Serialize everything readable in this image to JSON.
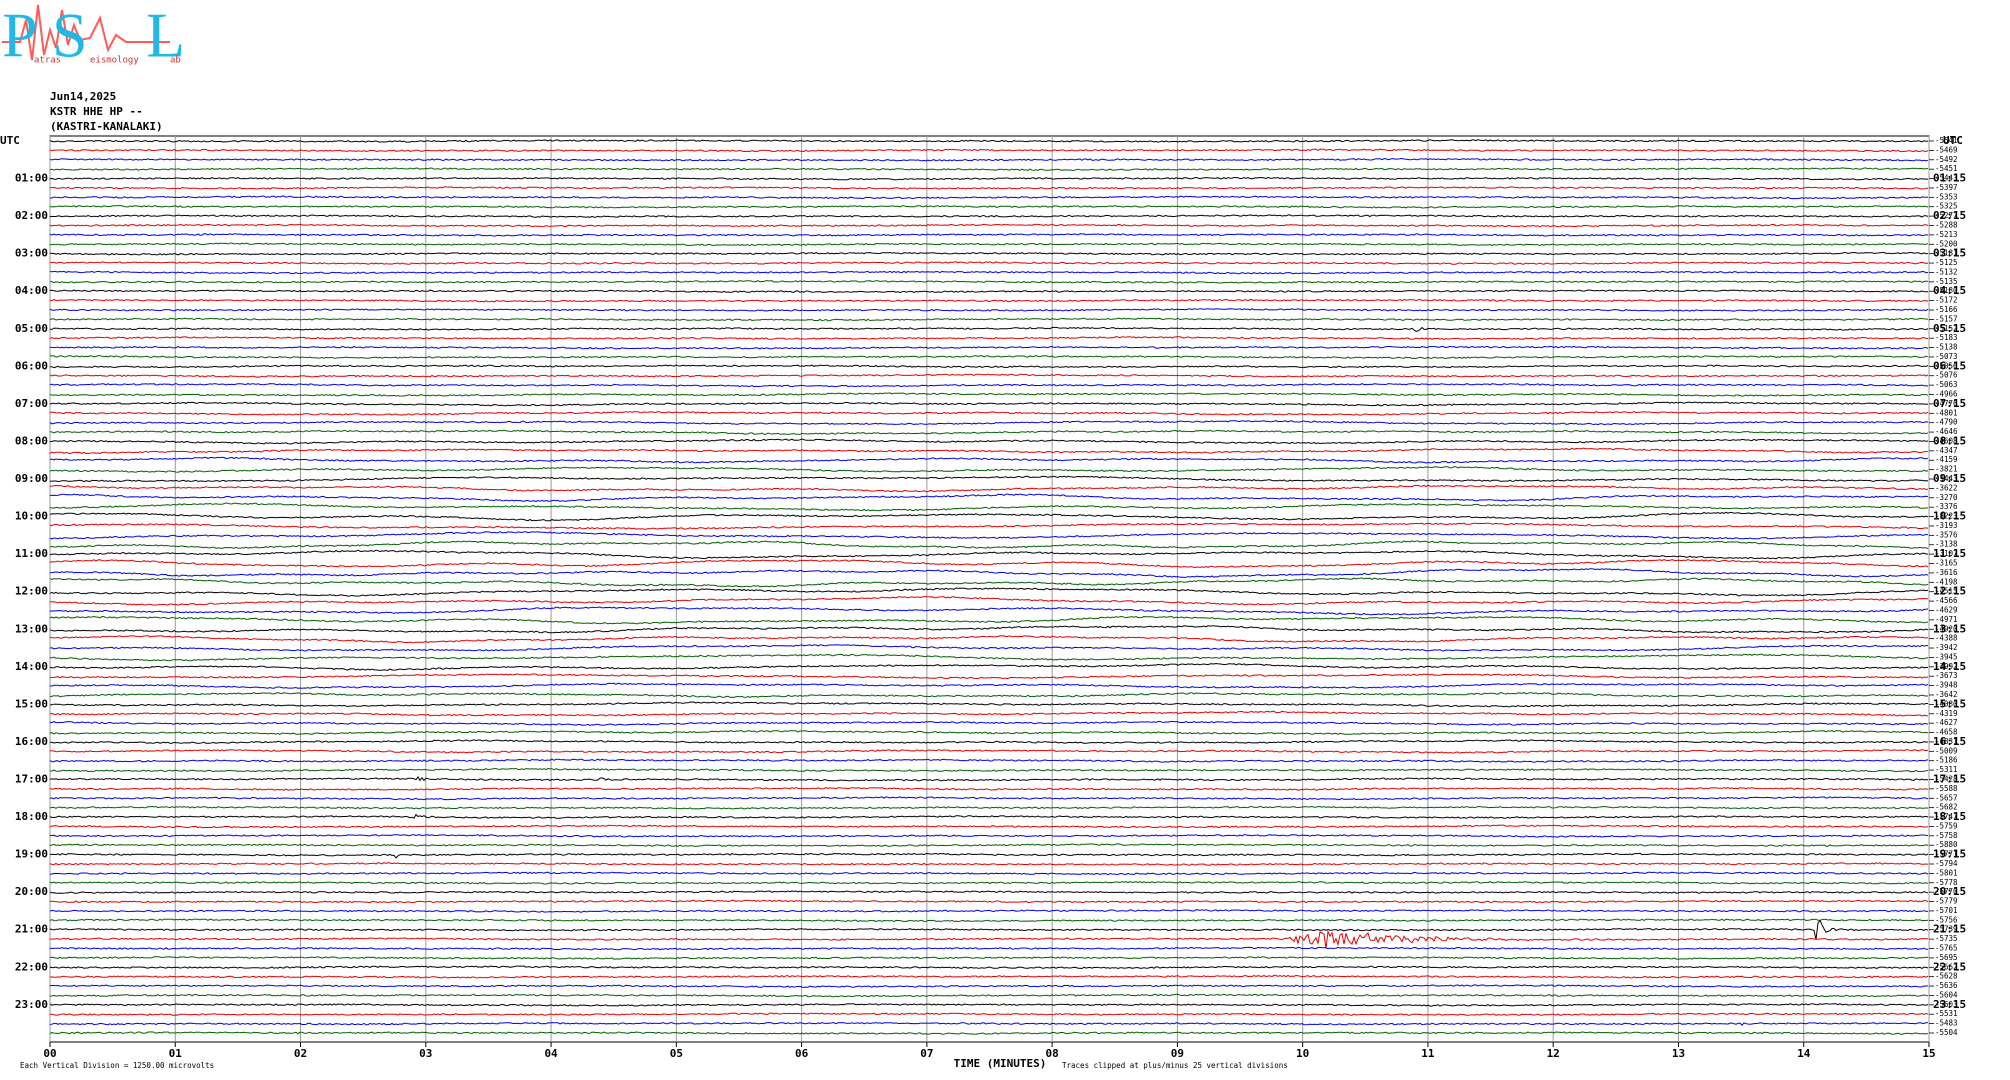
{
  "logo": {
    "letters": [
      "P",
      "S",
      "L"
    ],
    "small": [
      "atras",
      "eismology",
      "ab"
    ]
  },
  "header": {
    "date": "Jun14,2025",
    "station": "KSTR HHE HP --",
    "location": "(KASTRI-KANALAKI)"
  },
  "left_labels": [
    "UTC",
    "01:00",
    "02:00",
    "03:00",
    "04:00",
    "05:00",
    "06:00",
    "07:00",
    "08:00",
    "09:00",
    "10:00",
    "11:00",
    "12:00",
    "13:00",
    "14:00",
    "15:00",
    "16:00",
    "17:00",
    "18:00",
    "19:00",
    "20:00",
    "21:00",
    "22:00",
    "23:00"
  ],
  "right_labels": [
    "UTC",
    "01:15",
    "02:15",
    "03:15",
    "04:15",
    "05:15",
    "06:15",
    "07:15",
    "08:15",
    "09:15",
    "10:15",
    "11:15",
    "12:15",
    "13:15",
    "14:15",
    "15:15",
    "16:15",
    "17:15",
    "18:15",
    "19:15",
    "20:15",
    "21:15",
    "22:15",
    "23:15"
  ],
  "trace_offsets": [
    -5541,
    -5469,
    -5492,
    -5451,
    -5443,
    -5397,
    -5353,
    -5325,
    -5277,
    -5288,
    -5213,
    -5200,
    -5181,
    -5125,
    -5132,
    -5135,
    -5180,
    -5172,
    -5166,
    -5157,
    -5152,
    -5183,
    -5138,
    -5073,
    -5056,
    -5076,
    -5063,
    -4966,
    -4776,
    -4801,
    -4790,
    -4646,
    -4608,
    -4347,
    -4159,
    -3821,
    -3443,
    -3622,
    -3270,
    -3376,
    -3223,
    -3193,
    -3576,
    -3138,
    -3107,
    -3165,
    -3616,
    -4198,
    -4515,
    -4566,
    -4629,
    -4971,
    -4920,
    -4388,
    -3942,
    -3945,
    -3992,
    -3673,
    -3948,
    -3642,
    -4080,
    -4319,
    -4627,
    -4658,
    -4831,
    -5009,
    -5186,
    -5311,
    -5428,
    -5588,
    -5657,
    -5682,
    -5747,
    -5759,
    -5758,
    -5880,
    -5771,
    -5794,
    -5801,
    -5778,
    -5770,
    -5779,
    -5701,
    -5756,
    -5739,
    -5735,
    -5765,
    -5695,
    -5662,
    -5628,
    -5636,
    -5604,
    -5603,
    -5531,
    -5483,
    -5504
  ],
  "x_ticks": [
    "00",
    "01",
    "02",
    "03",
    "04",
    "05",
    "06",
    "07",
    "08",
    "09",
    "10",
    "11",
    "12",
    "13",
    "14",
    "15"
  ],
  "footer": {
    "scale_note": "Each Vertical Division = 1250.00 microvolts",
    "x_title": "TIME (MINUTES)",
    "clip_note": "Traces clipped at plus/minus 25 vertical divisions"
  }
}
